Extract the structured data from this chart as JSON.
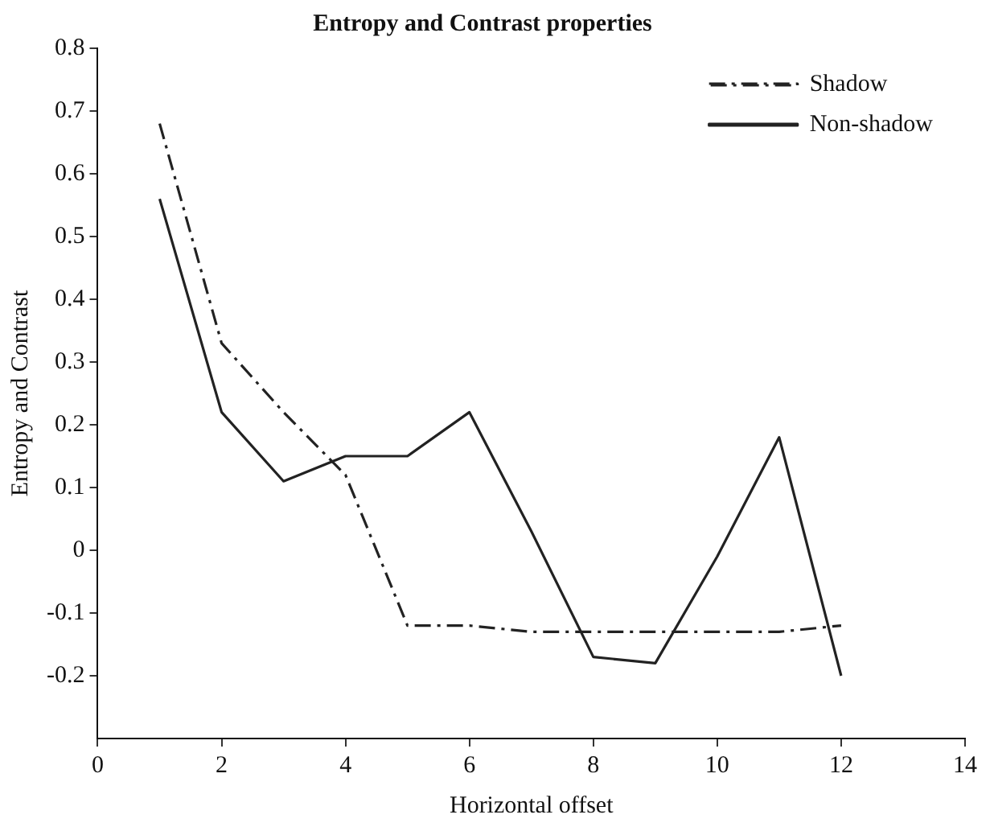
{
  "chart_data": {
    "type": "line",
    "title": "Entropy and Contrast properties",
    "xlabel": "Horizontal offset",
    "ylabel": "Entropy and Contrast",
    "x": [
      1,
      2,
      3,
      4,
      5,
      6,
      7,
      8,
      9,
      10,
      11,
      12
    ],
    "series": [
      {
        "name": "Shadow",
        "color": "#222222",
        "line_style": "dashdot",
        "values": [
          0.68,
          0.33,
          0.22,
          0.12,
          -0.12,
          -0.12,
          -0.13,
          -0.13,
          -0.13,
          -0.13,
          -0.13,
          -0.12
        ]
      },
      {
        "name": "Non-shadow",
        "color": "#222222",
        "line_style": "solid",
        "values": [
          0.56,
          0.22,
          0.11,
          0.15,
          0.15,
          0.22,
          0.03,
          -0.17,
          -0.18,
          -0.01,
          0.18,
          -0.2
        ]
      }
    ],
    "xlim": [
      0,
      14
    ],
    "xticks": [
      0,
      2,
      4,
      6,
      8,
      10,
      12,
      14
    ],
    "ylim": [
      -0.3,
      0.8
    ],
    "yticks": [
      -0.2,
      -0.1,
      0,
      0.1,
      0.2,
      0.3,
      0.4,
      0.5,
      0.6,
      0.7,
      0.8
    ],
    "grid": false,
    "legend": "top right",
    "marker": "none"
  }
}
